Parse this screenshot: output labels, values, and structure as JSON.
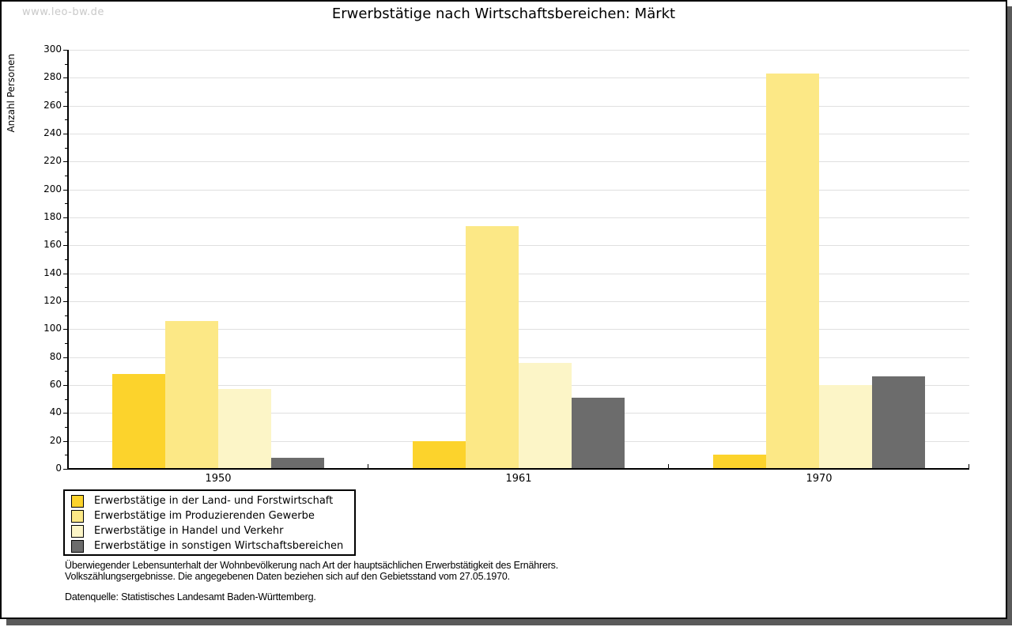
{
  "watermark": "www.leo-bw.de",
  "chart_data": {
    "type": "bar",
    "title": "Erwerbstätige nach Wirtschaftsbereichen: Märkt",
    "xlabel": "",
    "ylabel": "Anzahl Personen",
    "categories": [
      "1950",
      "1961",
      "1970"
    ],
    "series": [
      {
        "name": "Erwerbstätige in der Land- und Forstwirtschaft",
        "color": "#FCD32C",
        "values": [
          68,
          20,
          10
        ]
      },
      {
        "name": "Erwerbstätige im Produzierenden Gewerbe",
        "color": "#FCE886",
        "values": [
          106,
          174,
          283
        ]
      },
      {
        "name": "Erwerbstätige in Handel und Verkehr",
        "color": "#FCF5C7",
        "values": [
          57,
          76,
          60
        ]
      },
      {
        "name": "Erwerbstätige in sonstigen Wirtschaftsbereichen",
        "color": "#6C6C6C",
        "values": [
          8,
          51,
          66
        ]
      }
    ],
    "ylim": [
      0,
      300
    ],
    "yticks": [
      0,
      20,
      40,
      60,
      80,
      100,
      120,
      140,
      160,
      180,
      200,
      220,
      240,
      260,
      280,
      300
    ],
    "minor_ytick_step": 10,
    "grid": true,
    "gridline_color": "#e0e0e0",
    "legend_position": "bottom-left"
  },
  "footnotes": {
    "notes": [
      "Überwiegender Lebensunterhalt der Wohnbevölkerung nach Art der hauptsächlichen Erwerbstätigkeit des Ernährers.",
      "Volkszählungsergebnisse. Die angegebenen Daten beziehen sich auf den Gebietsstand vom 27.05.1970."
    ],
    "source": "Datenquelle: Statistisches Landesamt Baden-Württemberg."
  }
}
